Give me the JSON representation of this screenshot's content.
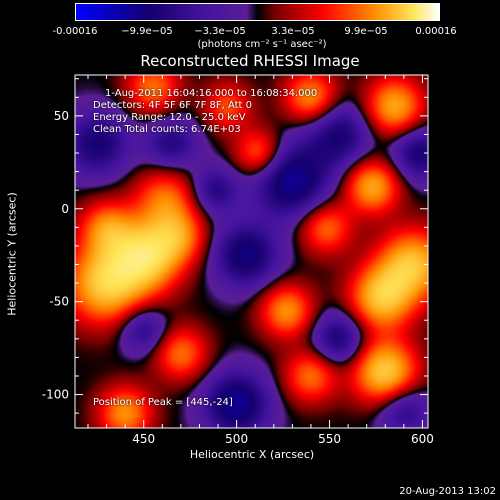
{
  "chart_data": {
    "type": "heatmap",
    "title": "Reconstructed RHESSI Image",
    "xlabel": "Heliocentric X (arcsec)",
    "ylabel": "Heliocentric Y (arcsec)",
    "xlim": [
      413,
      603
    ],
    "ylim": [
      -118,
      72
    ],
    "xticks": [
      450,
      500,
      550,
      600
    ],
    "yticks": [
      50,
      0,
      -50,
      -100
    ],
    "xtick_labels": [
      "450",
      "500",
      "550",
      "600"
    ],
    "ytick_labels": [
      "50",
      "0",
      "-50",
      "-100"
    ],
    "colorbar": {
      "ticks": [
        -0.00016,
        -9.9e-05,
        -3.3e-05,
        3.3e-05,
        9.9e-05,
        0.00016
      ],
      "tick_labels": [
        "-0.00016",
        "−9.9e−05",
        "−3.3e−05",
        "3.3e−05",
        "9.9e−05",
        "0.00016"
      ],
      "unit": "(photons cm⁻² s⁻¹ asec⁻²)",
      "vmin": -0.00016,
      "vmax": 0.00016
    },
    "annotations": [
      "1-Aug-2011 16:04:16.000 to 16:08:34.000",
      "Detectors: 4F 5F 6F 7F 8F, Att 0",
      "Energy Range: 12.0 - 25.0 keV",
      "Clean    Total counts: 6.74E+03",
      "Position of Peak = [445,-24]"
    ],
    "peak": [
      445,
      -24
    ],
    "sources": [
      {
        "x": 430,
        "y": -40,
        "amp": 1.0,
        "sigma": 15
      },
      {
        "x": 452,
        "y": -25,
        "amp": 1.0,
        "sigma": 13
      },
      {
        "x": 430,
        "y": -10,
        "amp": 0.6,
        "sigma": 10
      },
      {
        "x": 455,
        "y": 65,
        "amp": 0.6,
        "sigma": 10
      },
      {
        "x": 462,
        "y": 5,
        "amp": 0.6,
        "sigma": 12
      },
      {
        "x": 470,
        "y": -15,
        "amp": 0.5,
        "sigma": 10
      },
      {
        "x": 495,
        "y": 55,
        "amp": 0.5,
        "sigma": 9
      },
      {
        "x": 512,
        "y": 30,
        "amp": 0.6,
        "sigma": 9
      },
      {
        "x": 540,
        "y": 60,
        "amp": 0.7,
        "sigma": 10
      },
      {
        "x": 585,
        "y": 55,
        "amp": 0.8,
        "sigma": 11
      },
      {
        "x": 573,
        "y": 12,
        "amp": 0.8,
        "sigma": 10
      },
      {
        "x": 548,
        "y": -10,
        "amp": 0.6,
        "sigma": 10
      },
      {
        "x": 595,
        "y": -30,
        "amp": 0.9,
        "sigma": 13
      },
      {
        "x": 578,
        "y": -48,
        "amp": 0.9,
        "sigma": 12
      },
      {
        "x": 527,
        "y": -55,
        "amp": 0.7,
        "sigma": 10
      },
      {
        "x": 580,
        "y": -88,
        "amp": 1.0,
        "sigma": 12
      },
      {
        "x": 540,
        "y": -90,
        "amp": 0.6,
        "sigma": 10
      },
      {
        "x": 470,
        "y": -78,
        "amp": 0.6,
        "sigma": 10
      },
      {
        "x": 440,
        "y": -110,
        "amp": 0.7,
        "sigma": 10
      },
      {
        "x": 505,
        "y": -25,
        "amp": -0.7,
        "sigma": 12
      },
      {
        "x": 530,
        "y": 15,
        "amp": -0.8,
        "sigma": 14
      },
      {
        "x": 555,
        "y": 40,
        "amp": -0.6,
        "sigma": 12
      },
      {
        "x": 500,
        "y": -105,
        "amp": -0.8,
        "sigma": 12
      },
      {
        "x": 555,
        "y": -70,
        "amp": -0.6,
        "sigma": 10
      },
      {
        "x": 590,
        "y": -108,
        "amp": -0.5,
        "sigma": 10
      },
      {
        "x": 425,
        "y": 35,
        "amp": -0.6,
        "sigma": 12
      },
      {
        "x": 465,
        "y": 35,
        "amp": -0.5,
        "sigma": 10
      },
      {
        "x": 598,
        "y": 30,
        "amp": -0.6,
        "sigma": 10
      },
      {
        "x": 488,
        "y": 10,
        "amp": -0.5,
        "sigma": 9
      },
      {
        "x": 450,
        "y": -65,
        "amp": -0.5,
        "sigma": 9
      }
    ]
  },
  "footer": {
    "date": "20-Aug-2013 13:02"
  }
}
